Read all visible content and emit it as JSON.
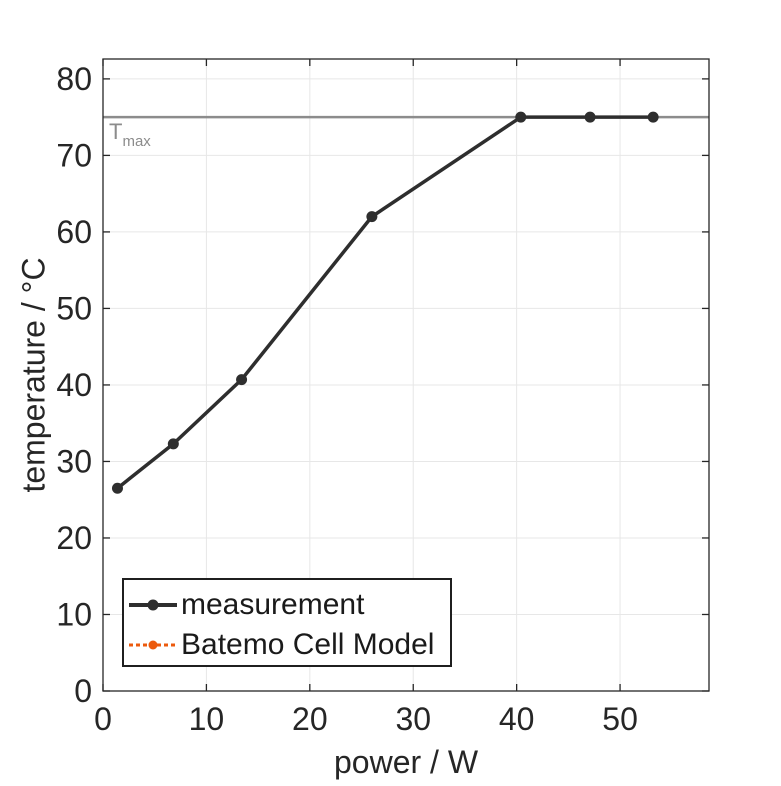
{
  "figure": {
    "background": "#ffffff"
  },
  "chart_data": {
    "type": "line",
    "title": "",
    "xlabel": "power / W",
    "ylabel": "temperature / °C",
    "xlim": [
      0,
      58.6
    ],
    "ylim": [
      0,
      82.6
    ],
    "xticks": [
      0,
      10,
      20,
      30,
      40,
      50
    ],
    "yticks": [
      0,
      10,
      20,
      30,
      40,
      50,
      60,
      70,
      80
    ],
    "grid": true,
    "axis_color": "#262626",
    "grid_color": "#e7e7e7",
    "tick_label_color": "#262626",
    "series": [
      {
        "name": "measurement",
        "color": "#2e2e2e",
        "line_style": "solid",
        "marker": "circle",
        "x": [
          1.4,
          6.8,
          13.4,
          26.0,
          40.4,
          47.1,
          53.2
        ],
        "y": [
          26.5,
          32.3,
          40.7,
          62.0,
          75.0,
          75.0,
          75.0
        ]
      },
      {
        "name": "Batemo Cell Model",
        "color": "#ec5a0d",
        "line_style": "dotted",
        "marker": "circle",
        "x": [],
        "y": []
      }
    ],
    "annotations": [
      {
        "type": "hline",
        "y": 75,
        "color": "#8c8c8c",
        "label_main": "T",
        "label_sub": "max"
      }
    ],
    "legend": {
      "position": "south-west"
    }
  }
}
